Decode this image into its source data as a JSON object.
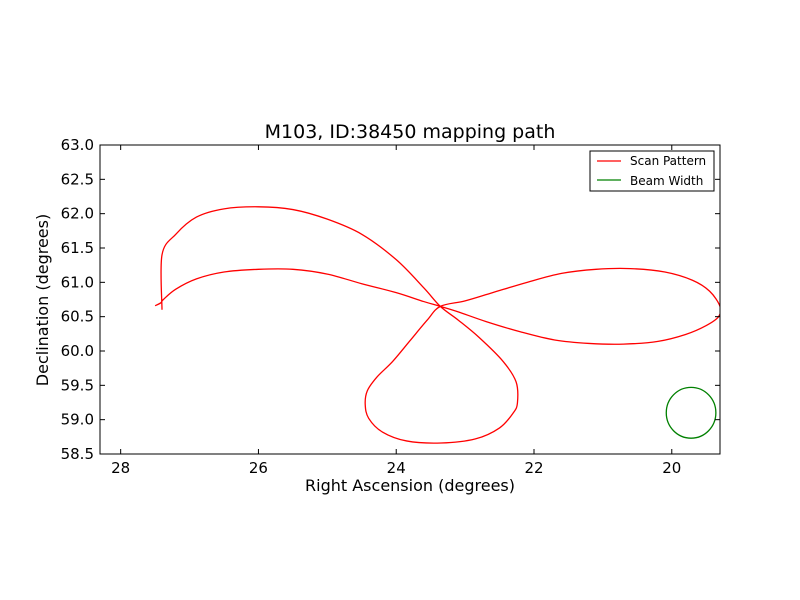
{
  "chart_data": {
    "type": "line",
    "title": "M103, ID:38450 mapping path",
    "xlabel": "Right Ascension (degrees)",
    "ylabel": "Declination (degrees)",
    "xlim": [
      28.3,
      19.3
    ],
    "ylim": [
      58.5,
      63.0
    ],
    "x_ticks": [
      28,
      26,
      24,
      22,
      20
    ],
    "x_tick_labels": [
      "28",
      "26",
      "24",
      "22",
      "20"
    ],
    "y_ticks": [
      58.5,
      59.0,
      59.5,
      60.0,
      60.5,
      61.0,
      61.5,
      62.0,
      62.5,
      63.0
    ],
    "y_tick_labels": [
      "58.5",
      "59.0",
      "59.5",
      "60.0",
      "60.5",
      "61.0",
      "61.5",
      "62.0",
      "62.5",
      "63.0"
    ],
    "grid": false,
    "legend_position": "top-right",
    "series": [
      {
        "name": "Scan Pattern",
        "color": "#ff0000",
        "x": [
          27.5,
          27.42,
          27.38,
          27.2,
          26.9,
          26.5,
          26.0,
          25.5,
          25.0,
          24.5,
          24.0,
          23.6,
          23.36,
          23.1,
          22.7,
          22.2,
          21.7,
          21.2,
          20.7,
          20.2,
          19.8,
          19.5,
          19.32,
          19.3,
          19.45,
          19.7,
          20.1,
          20.6,
          21.1,
          21.6,
          22.1,
          22.6,
          23.0,
          23.36,
          23.55,
          23.8,
          24.05,
          24.28,
          24.42,
          24.45,
          24.4,
          24.2,
          23.85,
          23.35,
          22.85,
          22.5,
          22.3,
          22.24,
          22.26,
          22.45,
          22.8,
          23.1,
          23.36,
          23.6,
          24.0,
          24.5,
          25.0,
          25.5,
          26.0,
          26.5,
          26.9,
          27.2,
          27.4,
          27.4
        ],
        "y": [
          60.66,
          60.7,
          60.75,
          60.9,
          61.05,
          61.15,
          61.19,
          61.19,
          61.12,
          60.98,
          60.85,
          60.72,
          60.65,
          60.57,
          60.43,
          60.28,
          60.16,
          60.11,
          60.1,
          60.14,
          60.24,
          60.37,
          60.5,
          60.65,
          60.87,
          61.03,
          61.15,
          61.2,
          61.19,
          61.13,
          61.0,
          60.85,
          60.73,
          60.65,
          60.45,
          60.15,
          59.85,
          59.62,
          59.42,
          59.22,
          59.02,
          58.82,
          58.69,
          58.66,
          58.72,
          58.88,
          59.1,
          59.25,
          59.55,
          59.85,
          60.2,
          60.45,
          60.65,
          60.92,
          61.33,
          61.7,
          61.92,
          62.06,
          62.1,
          62.07,
          61.95,
          61.7,
          61.4,
          60.6
        ],
        "values_note_free": true
      },
      {
        "name": "Beam Width",
        "color": "#008000",
        "center": [
          19.72,
          59.1
        ],
        "radius_x": 0.36,
        "radius_y": 0.37
      }
    ]
  }
}
